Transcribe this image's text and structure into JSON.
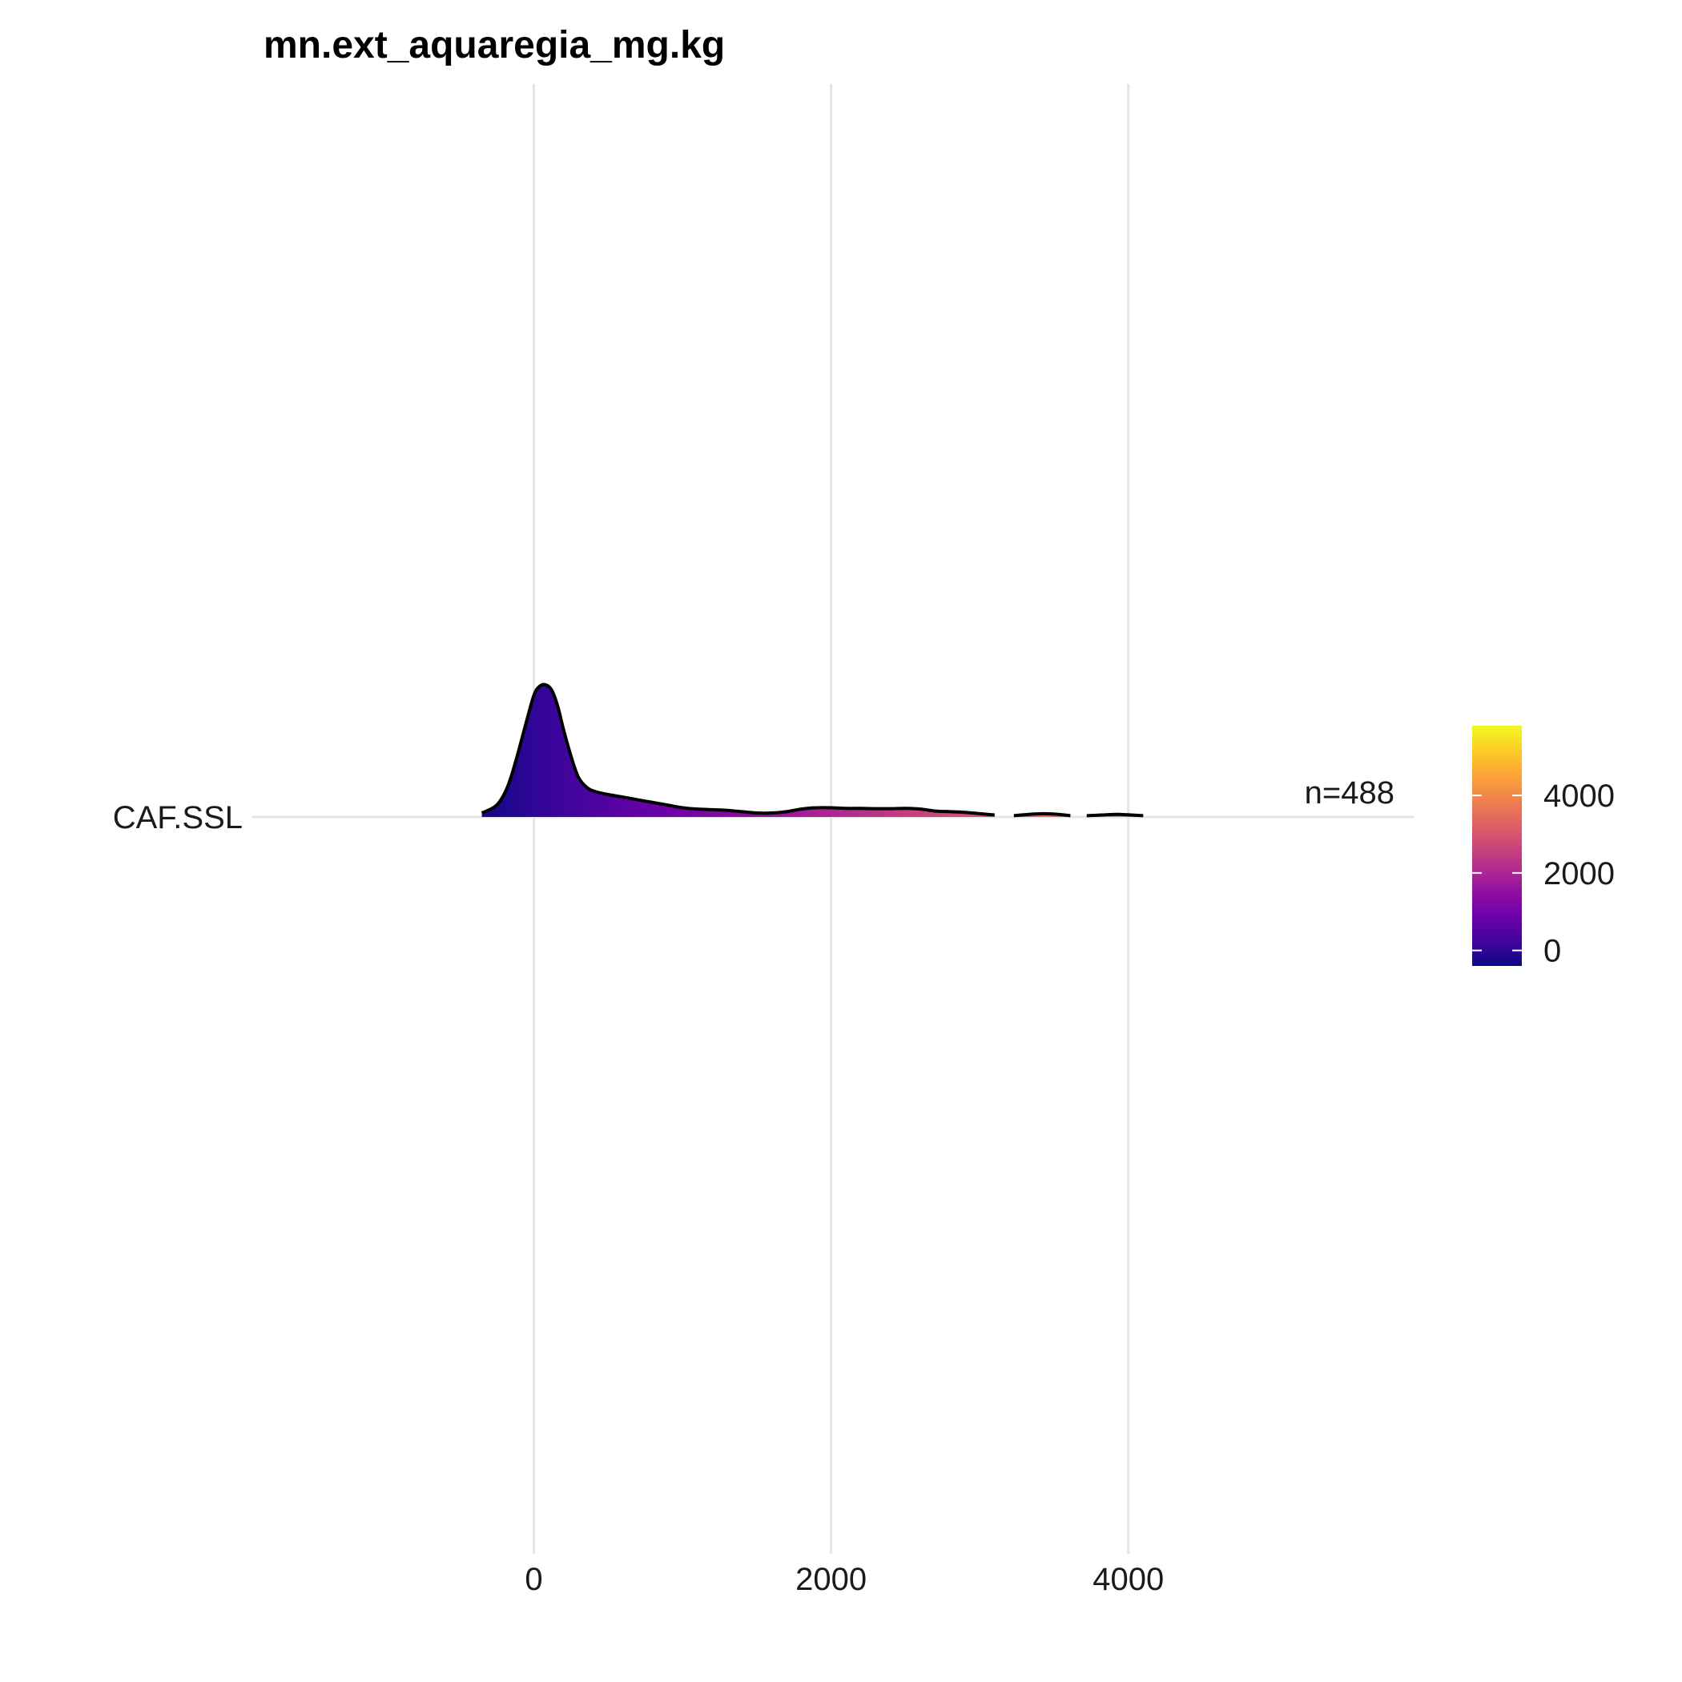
{
  "chart_data": {
    "type": "ridgeline-density",
    "title": "mn.ext_aquaregia_mg.kg",
    "xlabel": "",
    "ylabel": "",
    "xlim": [
      -1900,
      5920
    ],
    "x_ticks": [
      0,
      2000,
      4000
    ],
    "x_tick_labels": [
      "0",
      "2000",
      "4000"
    ],
    "grid": true,
    "series": [
      {
        "name": "CAF.SSL",
        "annotation": "n=488",
        "density_curve": {
          "x": [
            -350,
            -250,
            -180,
            -120,
            -60,
            0,
            40,
            80,
            120,
            160,
            200,
            250,
            300,
            360,
            420,
            500,
            600,
            700,
            800,
            900,
            1000,
            1100,
            1200,
            1300,
            1400,
            1500,
            1600,
            1700,
            1800,
            1900,
            2000,
            2100,
            2200,
            2300,
            2400,
            2500,
            2600,
            2700,
            2800,
            2900,
            3000,
            3100
          ],
          "y": [
            0.03,
            0.09,
            0.22,
            0.43,
            0.68,
            0.92,
            0.99,
            1.0,
            0.96,
            0.84,
            0.66,
            0.46,
            0.3,
            0.22,
            0.19,
            0.17,
            0.15,
            0.13,
            0.11,
            0.09,
            0.07,
            0.06,
            0.055,
            0.05,
            0.04,
            0.03,
            0.03,
            0.04,
            0.06,
            0.07,
            0.07,
            0.065,
            0.065,
            0.063,
            0.063,
            0.065,
            0.06,
            0.045,
            0.04,
            0.035,
            0.025,
            0.015
          ]
        },
        "tail_segments": [
          {
            "x": [
              3230,
              3330,
              3430,
              3530,
              3610
            ],
            "y": [
              0.01,
              0.02,
              0.025,
              0.02,
              0.01
            ]
          },
          {
            "x": [
              3720,
              3820,
              3920,
              4020,
              4100
            ],
            "y": [
              0.01,
              0.015,
              0.02,
              0.015,
              0.01
            ]
          }
        ]
      }
    ],
    "colorbar": {
      "palette": "plasma",
      "range": [
        -400,
        5800
      ],
      "ticks": [
        0,
        2000,
        4000
      ],
      "tick_labels": [
        "0",
        "2000",
        "4000"
      ],
      "colors": [
        "#0d0887",
        "#41049d",
        "#6a00a8",
        "#8f0da4",
        "#b12a90",
        "#cc4778",
        "#e16462",
        "#f2844b",
        "#fca636",
        "#fcce25",
        "#f0f921"
      ]
    },
    "colors": {
      "outline": "#000000",
      "grid": "#e5e5e5"
    }
  }
}
